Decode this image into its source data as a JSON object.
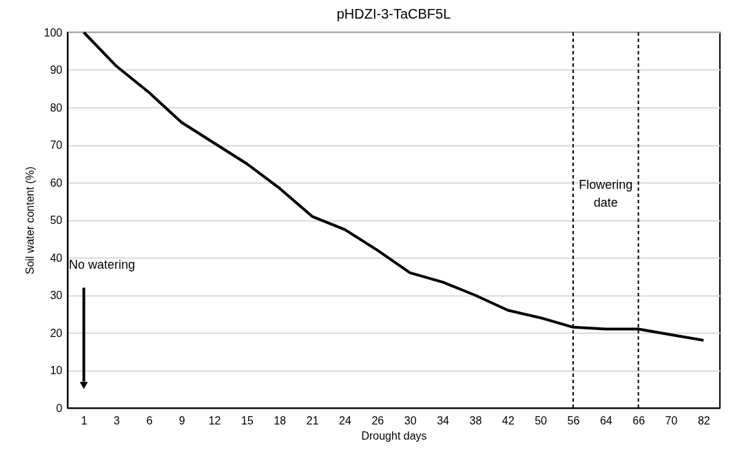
{
  "chart_data": {
    "type": "line",
    "title": "pHDZI-3-TaCBF5L",
    "xlabel": "Drought days",
    "ylabel": "Soil water content (%)",
    "categories": [
      "1",
      "3",
      "6",
      "9",
      "12",
      "15",
      "18",
      "21",
      "24",
      "26",
      "30",
      "34",
      "38",
      "42",
      "50",
      "56",
      "64",
      "66",
      "70",
      "82"
    ],
    "series": [
      {
        "color": "#000000",
        "values": [
          100,
          91,
          84,
          76,
          70.5,
          65,
          58.5,
          51,
          47.5,
          42,
          36,
          33.5,
          30,
          26,
          24,
          21.5,
          21,
          21,
          19.5,
          18
        ]
      }
    ],
    "ylim": [
      0,
      100
    ],
    "yticks": [
      0,
      10,
      20,
      30,
      40,
      50,
      60,
      70,
      80,
      90,
      100
    ],
    "grid": "y",
    "marker": "none",
    "line_style": "solid",
    "ref_lines": [
      {
        "axis": "x",
        "value": "56",
        "line_style": "dashed",
        "color": "#000000"
      },
      {
        "axis": "x",
        "value": "66",
        "line_style": "dashed",
        "color": "#000000"
      }
    ],
    "annotations": [
      "No watering",
      "Flowering date"
    ]
  }
}
